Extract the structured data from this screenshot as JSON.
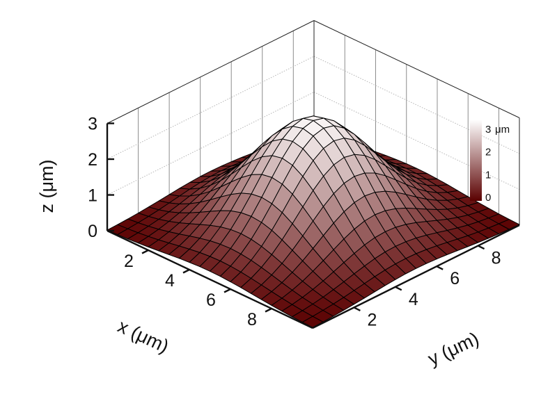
{
  "chart_data": {
    "type": "surface",
    "title": "",
    "surface": {
      "function": "gaussian",
      "center": {
        "x": 5,
        "y": 5
      },
      "peak_z": 3,
      "sigma": 2.2,
      "grid_steps": 20
    },
    "x_axis": {
      "label": "x (μm)",
      "range": [
        0,
        10
      ],
      "ticks": [
        "2",
        "4",
        "6",
        "8"
      ],
      "tick_values": [
        2,
        4,
        6,
        8
      ]
    },
    "y_axis": {
      "label": "y (μm)",
      "range": [
        0,
        10
      ],
      "ticks": [
        "2",
        "4",
        "6",
        "8"
      ],
      "tick_values": [
        2,
        4,
        6,
        8
      ]
    },
    "z_axis": {
      "label": "z (μm)",
      "range": [
        0,
        3
      ],
      "ticks": [
        "0",
        "1",
        "2",
        "3"
      ],
      "tick_values": [
        0,
        1,
        2,
        3
      ]
    },
    "colorbar": {
      "unit": "μm",
      "ticks": [
        "0",
        "1",
        "2",
        "3"
      ],
      "tick_values": [
        0,
        1,
        2,
        3
      ],
      "color_low": "#5a0000",
      "color_high": "#ffffff",
      "placement": "top-right"
    }
  }
}
